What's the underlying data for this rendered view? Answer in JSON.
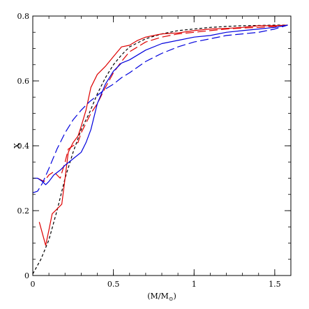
{
  "chart_data": {
    "type": "line",
    "title": "",
    "xlabel": "(M/M",
    "xlabel_sub": "⊙",
    "xlabel_close": ")",
    "ylabel": "X",
    "xlim": [
      0,
      1.6
    ],
    "ylim": [
      0,
      0.8
    ],
    "x_ticks": [
      {
        "value": 0,
        "label": "0"
      },
      {
        "value": 0.5,
        "label": "0.5"
      },
      {
        "value": 1,
        "label": "1"
      },
      {
        "value": 1.5,
        "label": "1.5"
      }
    ],
    "y_ticks": [
      {
        "value": 0,
        "label": "0"
      },
      {
        "value": 0.2,
        "label": "0.2"
      },
      {
        "value": 0.4,
        "label": "0.4"
      },
      {
        "value": 0.6,
        "label": "0.6"
      },
      {
        "value": 0.8,
        "label": "0.8"
      }
    ],
    "x_minor_step": 0.1,
    "y_minor_step": 0.05,
    "grid": false,
    "series": [
      {
        "id": "black-dashed",
        "color": "#000000",
        "style": "short-dash",
        "x": [
          0.0,
          0.05,
          0.1,
          0.15,
          0.2,
          0.25,
          0.3,
          0.35,
          0.4,
          0.45,
          0.5,
          0.55,
          0.6,
          0.7,
          0.8,
          0.9,
          1.0,
          1.1,
          1.2,
          1.3,
          1.4,
          1.5,
          1.58
        ],
        "y": [
          0.005,
          0.05,
          0.11,
          0.2,
          0.3,
          0.38,
          0.45,
          0.5,
          0.56,
          0.61,
          0.65,
          0.68,
          0.705,
          0.73,
          0.745,
          0.755,
          0.76,
          0.765,
          0.768,
          0.77,
          0.771,
          0.772,
          0.772
        ]
      },
      {
        "id": "red-solid",
        "color": "#dd0000",
        "style": "solid",
        "x": [
          0.04,
          0.08,
          0.1,
          0.12,
          0.15,
          0.18,
          0.2,
          0.22,
          0.25,
          0.28,
          0.3,
          0.33,
          0.36,
          0.4,
          0.45,
          0.5,
          0.55,
          0.6,
          0.65,
          0.7,
          0.75,
          0.8,
          0.9,
          1.0,
          1.1,
          1.2,
          1.3,
          1.4,
          1.5,
          1.58
        ],
        "y": [
          0.165,
          0.093,
          0.14,
          0.19,
          0.205,
          0.22,
          0.3,
          0.38,
          0.41,
          0.43,
          0.46,
          0.51,
          0.58,
          0.62,
          0.645,
          0.675,
          0.705,
          0.71,
          0.725,
          0.735,
          0.74,
          0.745,
          0.748,
          0.755,
          0.76,
          0.762,
          0.765,
          0.77,
          0.77,
          0.772
        ]
      },
      {
        "id": "red-dashed",
        "color": "#dd0000",
        "style": "long-dash",
        "x": [
          0.03,
          0.07,
          0.1,
          0.13,
          0.17,
          0.2,
          0.22,
          0.25,
          0.28,
          0.3,
          0.33,
          0.36,
          0.4,
          0.45,
          0.5,
          0.55,
          0.6,
          0.7,
          0.8,
          0.9,
          1.0,
          1.1,
          1.2,
          1.3,
          1.4,
          1.5,
          1.58
        ],
        "y": [
          0.3,
          0.29,
          0.31,
          0.32,
          0.3,
          0.35,
          0.39,
          0.4,
          0.41,
          0.44,
          0.47,
          0.5,
          0.53,
          0.58,
          0.625,
          0.66,
          0.69,
          0.72,
          0.735,
          0.745,
          0.75,
          0.755,
          0.76,
          0.763,
          0.765,
          0.768,
          0.772
        ]
      },
      {
        "id": "blue-solid",
        "color": "#0000dd",
        "style": "solid",
        "x": [
          0.0,
          0.03,
          0.06,
          0.08,
          0.1,
          0.13,
          0.17,
          0.2,
          0.25,
          0.3,
          0.33,
          0.36,
          0.4,
          0.45,
          0.5,
          0.55,
          0.6,
          0.7,
          0.8,
          0.9,
          1.0,
          1.1,
          1.2,
          1.3,
          1.4,
          1.5,
          1.58
        ],
        "y": [
          0.3,
          0.3,
          0.29,
          0.28,
          0.29,
          0.31,
          0.325,
          0.34,
          0.36,
          0.38,
          0.41,
          0.45,
          0.53,
          0.59,
          0.63,
          0.655,
          0.665,
          0.695,
          0.715,
          0.725,
          0.735,
          0.74,
          0.75,
          0.755,
          0.76,
          0.765,
          0.772
        ]
      },
      {
        "id": "blue-dashed",
        "color": "#0000dd",
        "style": "long-dash",
        "x": [
          0.0,
          0.03,
          0.06,
          0.1,
          0.15,
          0.2,
          0.25,
          0.3,
          0.35,
          0.4,
          0.45,
          0.5,
          0.55,
          0.6,
          0.7,
          0.8,
          0.9,
          1.0,
          1.1,
          1.2,
          1.3,
          1.4,
          1.5,
          1.58
        ],
        "y": [
          0.255,
          0.26,
          0.285,
          0.33,
          0.39,
          0.44,
          0.48,
          0.51,
          0.535,
          0.555,
          0.575,
          0.59,
          0.61,
          0.625,
          0.66,
          0.685,
          0.705,
          0.72,
          0.73,
          0.74,
          0.745,
          0.75,
          0.76,
          0.772
        ]
      }
    ]
  }
}
